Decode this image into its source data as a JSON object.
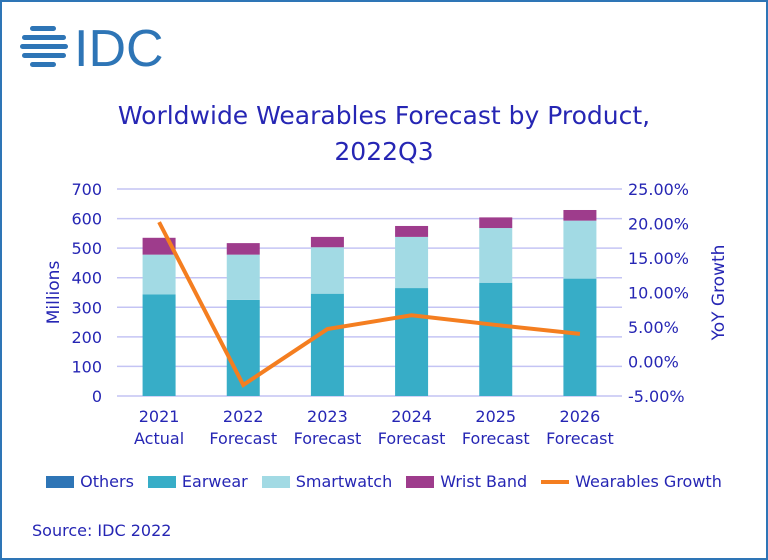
{
  "logo_text": "IDC",
  "chart_data": {
    "type": "bar",
    "stacked": true,
    "title_line1": "Worldwide Wearables Forecast by Product,",
    "title_line2": "2022Q3",
    "categories": [
      [
        "2021",
        "Actual"
      ],
      [
        "2022",
        "Forecast"
      ],
      [
        "2023",
        "Forecast"
      ],
      [
        "2024",
        "Forecast"
      ],
      [
        "2025",
        "Forecast"
      ],
      [
        "2026",
        "Forecast"
      ]
    ],
    "ylabel": "Millions",
    "y2label": "YoY Growth",
    "ylim": [
      0,
      700
    ],
    "yticks": [
      "0",
      "100",
      "200",
      "300",
      "400",
      "500",
      "600",
      "700"
    ],
    "y2lim": [
      -5,
      25
    ],
    "y2ticks": [
      "-5.00%",
      "0.00%",
      "5.00%",
      "10.00%",
      "15.00%",
      "20.00%",
      "25.00%"
    ],
    "grid": true,
    "legend_position": "bottom",
    "series": [
      {
        "name": "Others",
        "color": "#2e75b6",
        "values": [
          0,
          0,
          0,
          0,
          0,
          0
        ]
      },
      {
        "name": "Earwear",
        "color": "#37adc7",
        "values": [
          344,
          325,
          346,
          365,
          383,
          397
        ]
      },
      {
        "name": "Smartwatch",
        "color": "#a2dae4",
        "values": [
          134,
          153,
          157,
          173,
          185,
          196
        ]
      },
      {
        "name": "Wrist Band",
        "color": "#9e3c8c",
        "values": [
          57,
          39,
          35,
          37,
          36,
          36
        ]
      }
    ],
    "line_series": {
      "name": "Wearables Growth",
      "color": "#f47e20",
      "axis": "secondary",
      "values": [
        20.2,
        -3.4,
        4.7,
        6.7,
        5.3,
        4.0
      ]
    }
  },
  "source": "Source: IDC 2022"
}
